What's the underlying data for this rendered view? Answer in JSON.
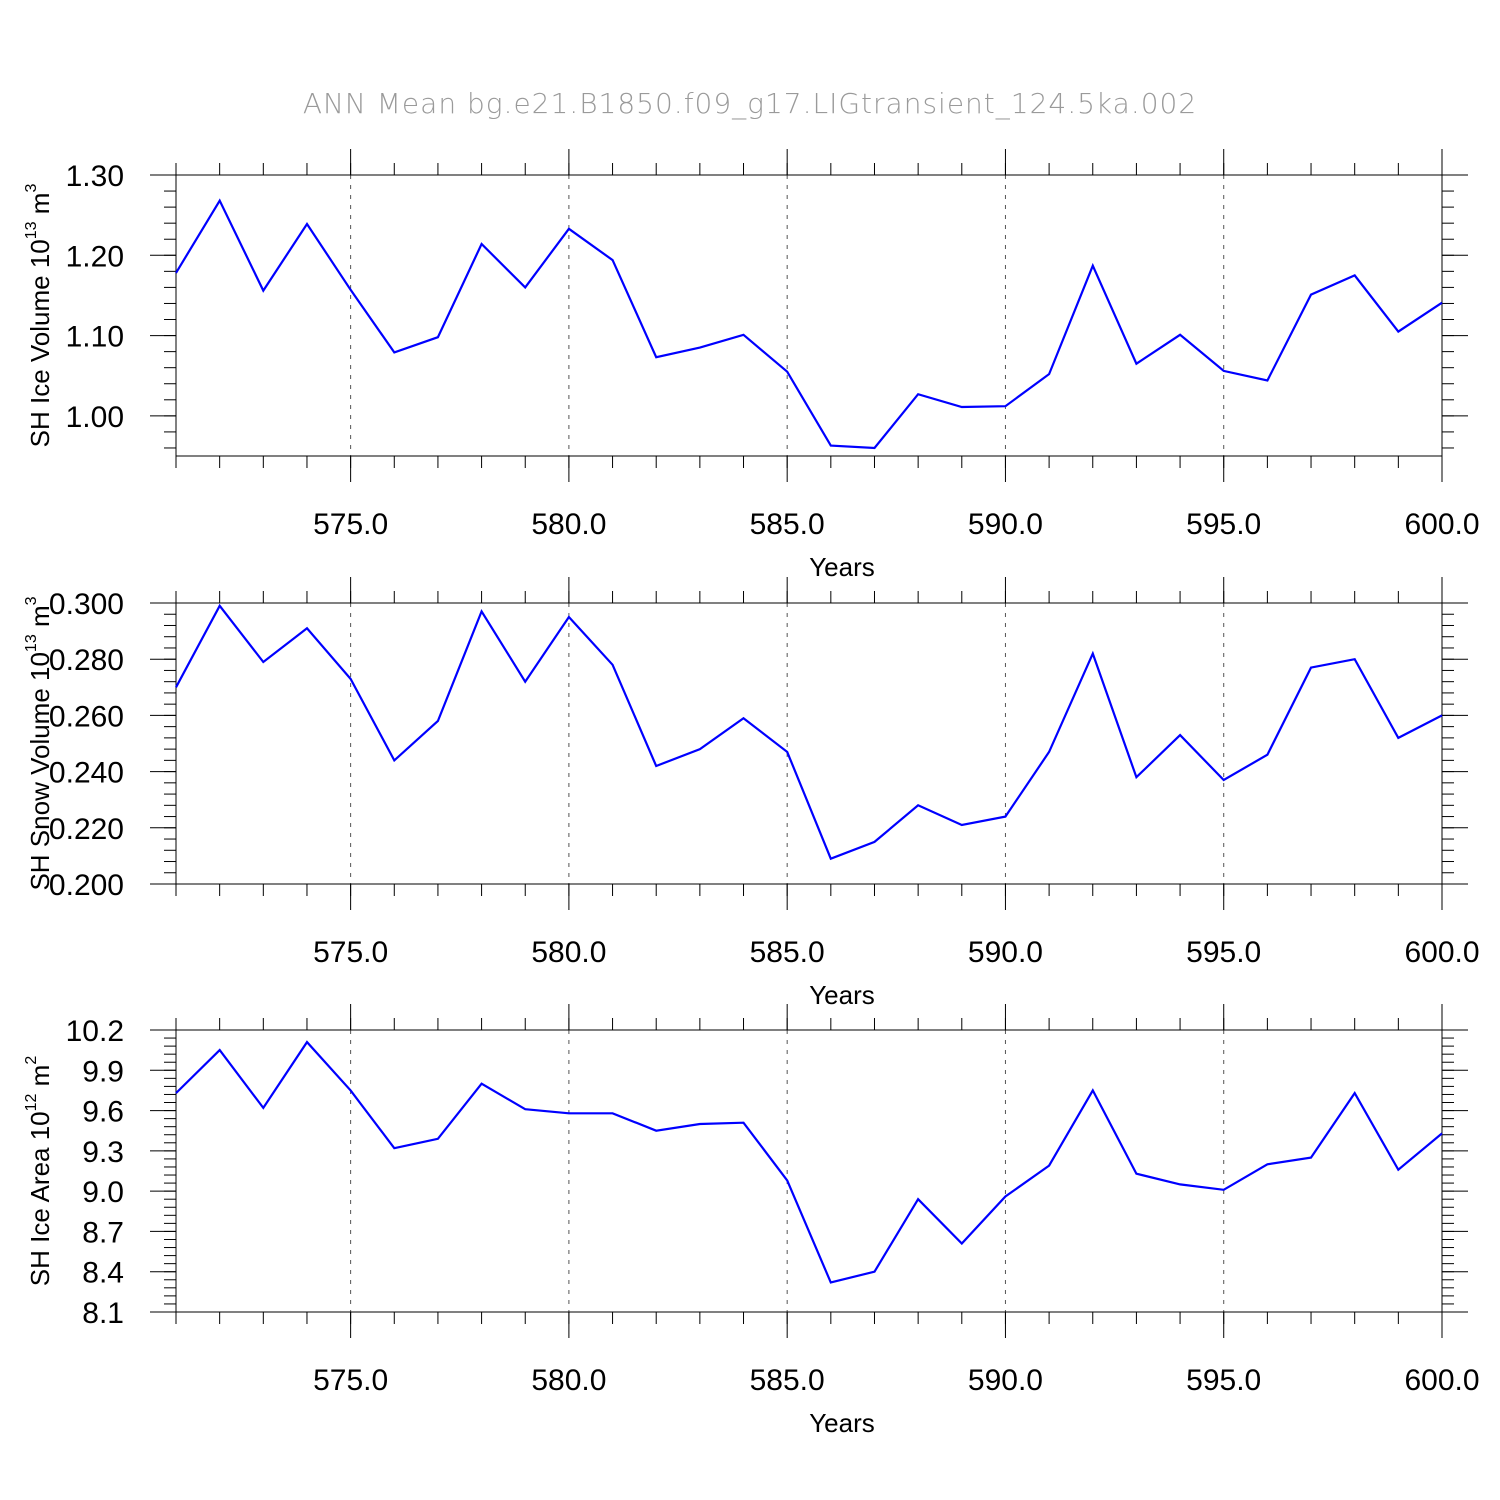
{
  "figure": {
    "title": "ANN Mean bg.e21.B1850.f09_g17.LIGtransient_124.5ka.002"
  },
  "chart_data": [
    {
      "type": "line",
      "xlabel": "Years",
      "ylabel": "SH Ice Volume 10",
      "ylabel_exp": "13",
      "ylabel_unit": " m",
      "ylabel_unit_exp": "3",
      "xlim": [
        571,
        600
      ],
      "ylim": [
        0.95,
        1.3
      ],
      "xticks": [
        575,
        580,
        585,
        590,
        595,
        600
      ],
      "xtick_labels": [
        "575.0",
        "580.0",
        "585.0",
        "590.0",
        "595.0",
        "600.0"
      ],
      "yticks": [
        1.0,
        1.1,
        1.2,
        1.3
      ],
      "ytick_labels": [
        "1.00",
        "1.10",
        "1.20",
        "1.30"
      ],
      "grid": "vertical dashed",
      "series": [
        {
          "color": "#0000ff",
          "x": [
            571,
            572,
            573,
            574,
            575,
            576,
            577,
            578,
            579,
            580,
            581,
            582,
            583,
            584,
            585,
            586,
            587,
            588,
            589,
            590,
            591,
            592,
            593,
            594,
            595,
            596,
            597,
            598,
            599,
            600
          ],
          "y": [
            1.178,
            1.268,
            1.156,
            1.239,
            1.157,
            1.079,
            1.098,
            1.214,
            1.16,
            1.233,
            1.194,
            1.073,
            1.085,
            1.101,
            1.055,
            0.963,
            0.96,
            1.027,
            1.011,
            1.012,
            1.052,
            1.187,
            1.065,
            1.101,
            1.056,
            1.044,
            1.151,
            1.175,
            1.105,
            1.141
          ]
        }
      ]
    },
    {
      "type": "line",
      "xlabel": "Years",
      "ylabel": "SH Snow Volume 10",
      "ylabel_exp": "13",
      "ylabel_unit": " m",
      "ylabel_unit_exp": "3",
      "xlim": [
        571,
        600
      ],
      "ylim": [
        0.2,
        0.3
      ],
      "xticks": [
        575,
        580,
        585,
        590,
        595,
        600
      ],
      "xtick_labels": [
        "575.0",
        "580.0",
        "585.0",
        "590.0",
        "595.0",
        "600.0"
      ],
      "yticks": [
        0.2,
        0.22,
        0.24,
        0.26,
        0.28,
        0.3
      ],
      "ytick_labels": [
        "0.200",
        "0.220",
        "0.240",
        "0.260",
        "0.280",
        "0.300"
      ],
      "grid": "vertical dashed",
      "series": [
        {
          "color": "#0000ff",
          "x": [
            571,
            572,
            573,
            574,
            575,
            576,
            577,
            578,
            579,
            580,
            581,
            582,
            583,
            584,
            585,
            586,
            587,
            588,
            589,
            590,
            591,
            592,
            593,
            594,
            595,
            596,
            597,
            598,
            599,
            600
          ],
          "y": [
            0.27,
            0.299,
            0.279,
            0.291,
            0.273,
            0.244,
            0.258,
            0.297,
            0.272,
            0.295,
            0.278,
            0.242,
            0.248,
            0.259,
            0.247,
            0.209,
            0.215,
            0.228,
            0.221,
            0.224,
            0.247,
            0.282,
            0.238,
            0.253,
            0.237,
            0.246,
            0.277,
            0.28,
            0.252,
            0.26
          ]
        }
      ]
    },
    {
      "type": "line",
      "xlabel": "Years",
      "ylabel": "SH Ice Area 10",
      "ylabel_exp": "12",
      "ylabel_unit": " m",
      "ylabel_unit_exp": "2",
      "xlim": [
        571,
        600
      ],
      "ylim": [
        8.1,
        10.2
      ],
      "xticks": [
        575,
        580,
        585,
        590,
        595,
        600
      ],
      "xtick_labels": [
        "575.0",
        "580.0",
        "585.0",
        "590.0",
        "595.0",
        "600.0"
      ],
      "yticks": [
        8.1,
        8.4,
        8.7,
        9.0,
        9.3,
        9.6,
        9.9,
        10.2
      ],
      "ytick_labels": [
        "8.1",
        "8.4",
        "8.7",
        "9.0",
        "9.3",
        "9.6",
        "9.9",
        "10.2"
      ],
      "grid": "vertical dashed",
      "series": [
        {
          "color": "#0000ff",
          "x": [
            571,
            572,
            573,
            574,
            575,
            576,
            577,
            578,
            579,
            580,
            581,
            582,
            583,
            584,
            585,
            586,
            587,
            588,
            589,
            590,
            591,
            592,
            593,
            594,
            595,
            596,
            597,
            598,
            599,
            600
          ],
          "y": [
            9.73,
            10.05,
            9.62,
            10.11,
            9.75,
            9.32,
            9.39,
            9.8,
            9.61,
            9.58,
            9.58,
            9.45,
            9.5,
            9.51,
            9.08,
            8.32,
            8.4,
            8.94,
            8.61,
            8.96,
            9.19,
            9.75,
            9.13,
            9.05,
            9.01,
            9.2,
            9.25,
            9.73,
            9.16,
            9.43
          ]
        }
      ]
    }
  ]
}
